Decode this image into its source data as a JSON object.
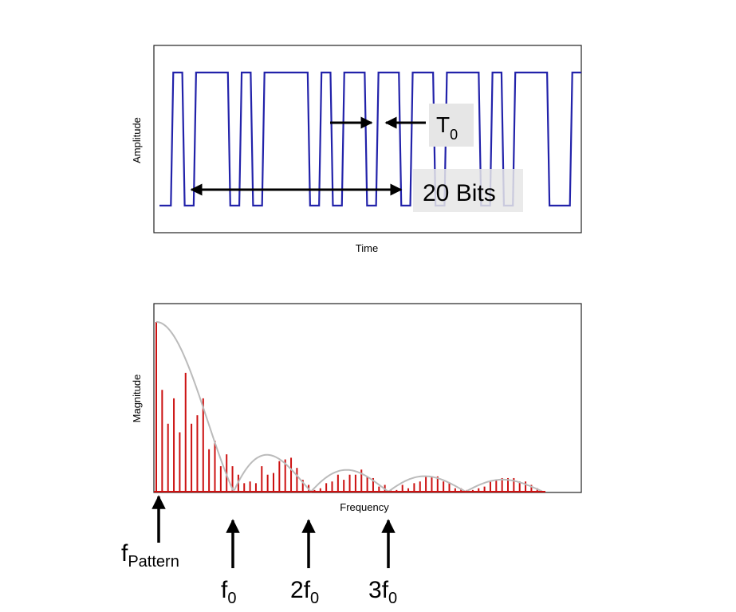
{
  "time_plot": {
    "ylabel": "Amplitude",
    "xlabel": "Time",
    "period_label": {
      "main": "T",
      "sub": "0"
    },
    "pattern_label": "20 Bits",
    "colors": {
      "waveform": "#2222aa",
      "arrow": "#000000",
      "label_box": "#e6e6e6"
    }
  },
  "spectrum_plot": {
    "ylabel": "Magnitude",
    "xlabel": "Frequency",
    "colors": {
      "lines": "#cc1111",
      "envelope": "#bbbbbb"
    }
  },
  "frequency_markers": [
    {
      "main": "f",
      "sub": "Pattern",
      "prefix": ""
    },
    {
      "main": "f",
      "sub": "0",
      "prefix": ""
    },
    {
      "main": "f",
      "sub": "0",
      "prefix": "2"
    },
    {
      "main": "f",
      "sub": "0",
      "prefix": "3"
    }
  ],
  "chart_data": [
    {
      "type": "line",
      "title": "",
      "xlabel": "Time",
      "ylabel": "Amplitude",
      "series": [
        {
          "values": [
            0,
            1,
            0,
            1,
            1,
            1,
            0,
            1,
            0,
            1,
            1,
            1,
            1,
            0,
            1,
            0,
            1,
            1,
            0,
            1,
            1,
            0,
            1,
            1,
            0,
            1,
            1,
            1,
            0,
            1,
            0,
            1,
            1,
            1,
            0,
            0,
            1
          ]
        }
      ]
    },
    {
      "type": "bar",
      "title": "",
      "xlabel": "Frequency",
      "ylabel": "Magnitude",
      "values": [
        1.0,
        0.6,
        0.4,
        0.55,
        0.35,
        0.7,
        0.4,
        0.45,
        0.55,
        0.25,
        0.3,
        0.15,
        0.22,
        0.15,
        0.1,
        0.05,
        0.06,
        0.05,
        0.15,
        0.1,
        0.11,
        0.18,
        0.19,
        0.2,
        0.14,
        0.07,
        0.04,
        0.01,
        0.02,
        0.05,
        0.06,
        0.1,
        0.07,
        0.1,
        0.1,
        0.13,
        0.09,
        0.08,
        0.03,
        0.04,
        0.01,
        0.01,
        0.04,
        0.02,
        0.05,
        0.06,
        0.09,
        0.09,
        0.09,
        0.06,
        0.05,
        0.02,
        0.02,
        0.01,
        0.01,
        0.02,
        0.03,
        0.06,
        0.07,
        0.08,
        0.08,
        0.08,
        0.06,
        0.06,
        0.04,
        0.02
      ],
      "envelope": "sinc"
    }
  ]
}
